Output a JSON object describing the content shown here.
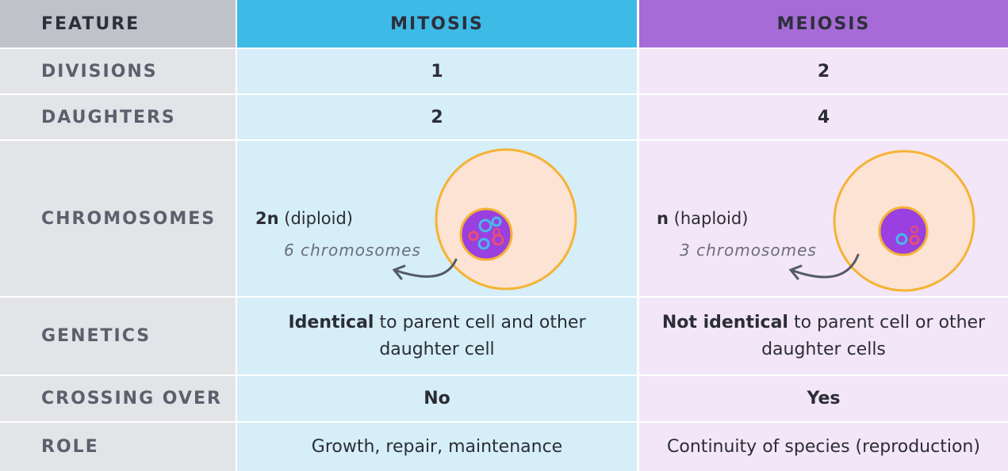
{
  "table": {
    "header": [
      "FEATURE",
      "MITOSIS",
      "MEIOSIS"
    ],
    "rows": [
      [
        "DIVISIONS",
        1,
        2
      ],
      [
        "DAUGHTERS",
        2,
        4
      ],
      [
        "CHROMOSOMES",
        {
          "ploidy": "2n",
          "ploidy_note": "(diploid)",
          "count": "6 chromosomes"
        },
        {
          "ploidy": "n",
          "ploidy_note": "(haploid)",
          "count": "3 chromosomes"
        }
      ],
      [
        "GENETICS",
        {
          "bold": "Identical",
          "text": "to parent cell and other daughter cell"
        },
        {
          "bold": "Not identical",
          "text": "to parent cell or other daughter cells"
        }
      ],
      [
        "CROSSING OVER",
        "No",
        "Yes"
      ],
      [
        "ROLE",
        "Growth, repair, maintenance",
        "Continuity of species (reproduction)"
      ]
    ]
  }
}
